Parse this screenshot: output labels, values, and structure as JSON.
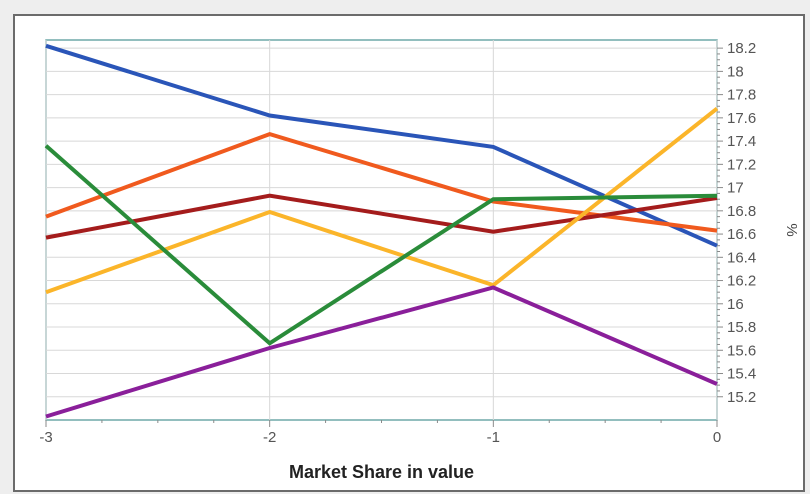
{
  "chart_data": {
    "type": "line",
    "title": "Market Share in value",
    "xlabel": "",
    "ylabel": "%",
    "x": [
      -3,
      -2,
      -1,
      0
    ],
    "xlim": [
      -3,
      0
    ],
    "ylim": [
      15.0,
      18.27
    ],
    "x_ticks": [
      -3,
      -2,
      -1,
      0
    ],
    "x_tick_labels": [
      "-3",
      "-2",
      "-1",
      "0"
    ],
    "y_ticks": [
      15.2,
      15.4,
      15.6,
      15.8,
      16,
      16.2,
      16.4,
      16.6,
      16.8,
      17,
      17.2,
      17.4,
      17.6,
      17.8,
      18,
      18.2
    ],
    "y_tick_labels": [
      "15.2",
      "15.4",
      "15.6",
      "15.8",
      "16",
      "16.2",
      "16.4",
      "16.6",
      "16.8",
      "17",
      "17.2",
      "17.4",
      "17.6",
      "17.8",
      "18",
      "18.2"
    ],
    "y_axis_side": "right",
    "grid": true,
    "series": [
      {
        "color": "#2a55b8",
        "values": [
          18.22,
          17.62,
          17.35,
          16.5
        ]
      },
      {
        "color": "#f05a1e",
        "values": [
          16.75,
          17.46,
          16.88,
          16.63
        ]
      },
      {
        "color": "#a41c1c",
        "values": [
          16.57,
          16.93,
          16.62,
          16.91
        ]
      },
      {
        "color": "#fbb52a",
        "values": [
          16.1,
          16.79,
          16.16,
          17.68
        ]
      },
      {
        "color": "#2a8c3a",
        "values": [
          17.36,
          15.66,
          16.9,
          16.93
        ]
      },
      {
        "color": "#8a1f9a",
        "values": [
          15.03,
          15.62,
          16.14,
          15.31
        ]
      }
    ]
  },
  "colors": {
    "plot_border": "#6fa8a8",
    "grid": "#d8d8d8",
    "tick": "#8a8a8a",
    "frame": "#6b6b6b",
    "background": "#eeeeee"
  }
}
